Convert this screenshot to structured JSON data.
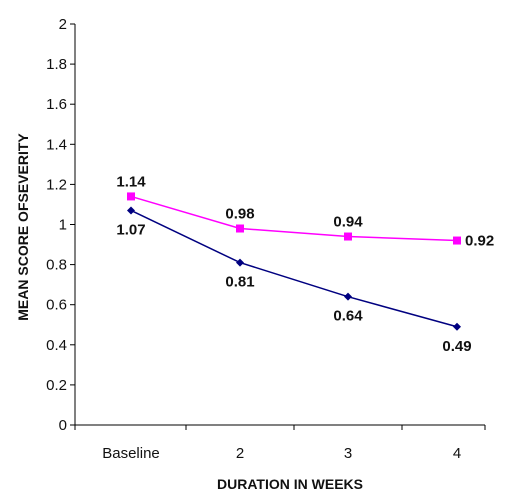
{
  "chart_data": {
    "type": "line",
    "categories": [
      "Baseline",
      "2",
      "3",
      "4"
    ],
    "xlabel": "DURATION IN WEEKS",
    "ylabel": "MEAN SCORE OFSEVERITY",
    "ylim": [
      0,
      2
    ],
    "yticks": [
      "0",
      "0.2",
      "0.4",
      "0.6",
      "0.8",
      "1",
      "1.2",
      "1.4",
      "1.6",
      "1.8",
      "2"
    ],
    "grid": false,
    "legend": "none",
    "series": [
      {
        "values": [
          1.14,
          0.98,
          0.94,
          0.92
        ],
        "labels": [
          "1.14",
          "0.98",
          "0.94",
          "0.92"
        ],
        "color": "#ff00ff",
        "marker": "square",
        "label_position": "above"
      },
      {
        "values": [
          1.07,
          0.81,
          0.64,
          0.49
        ],
        "labels": [
          "1.07",
          "0.81",
          "0.64",
          "0.49"
        ],
        "color": "#000080",
        "marker": "diamond",
        "label_position": "below"
      }
    ]
  }
}
